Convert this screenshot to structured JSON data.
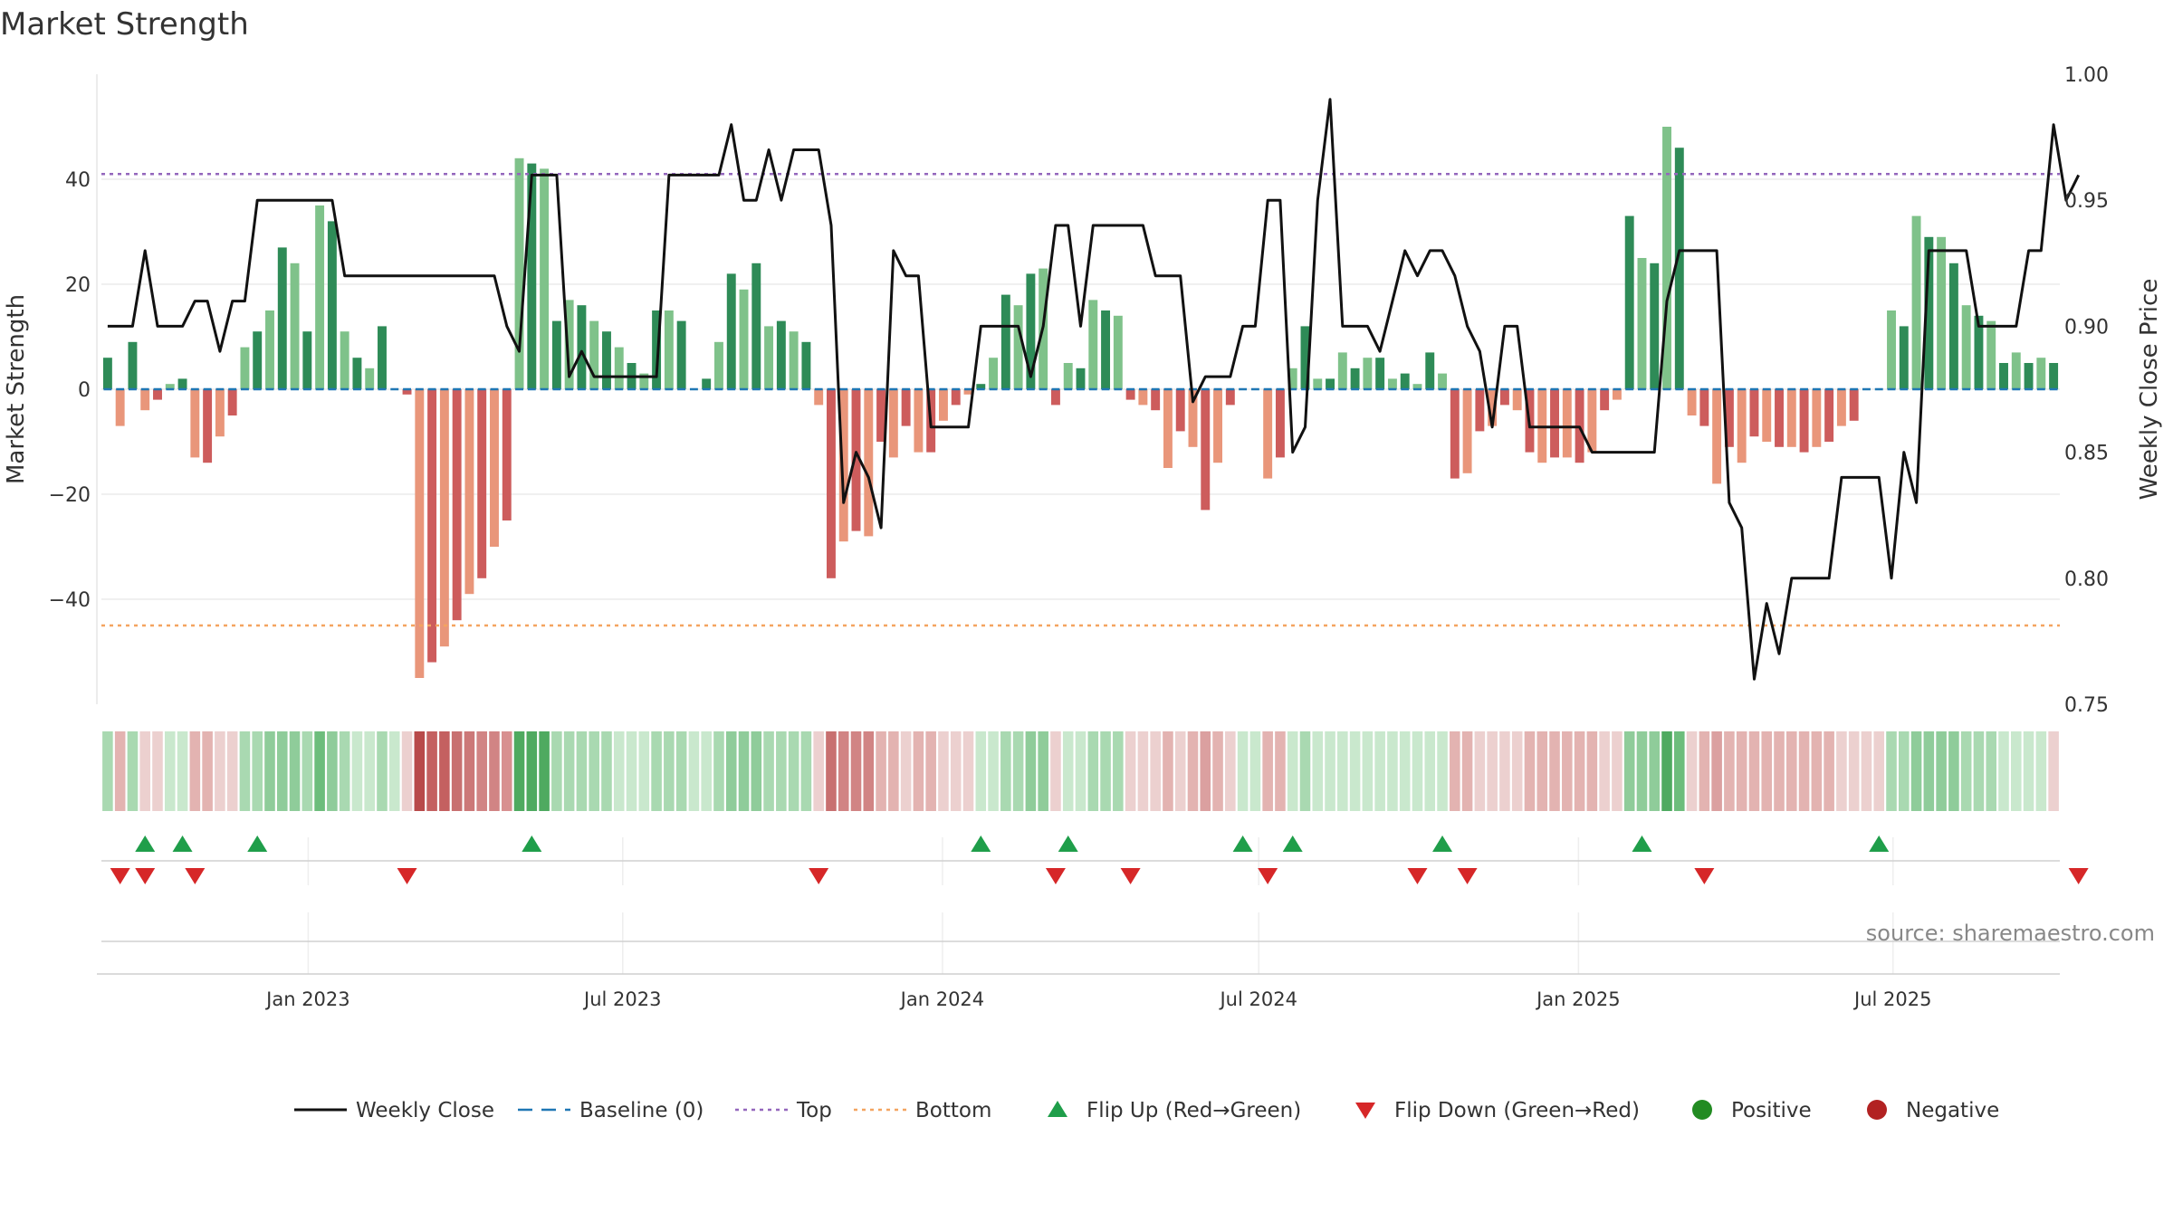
{
  "chart_data": {
    "type": "bar",
    "title": "Market Strength",
    "ylabel": "Market Strength",
    "y2label": "Weekly Close Price",
    "ylim": [
      -60,
      60
    ],
    "y2lim": [
      0.75,
      1.0
    ],
    "yticks": [
      40,
      20,
      0,
      -20,
      -40
    ],
    "ytick_labels": [
      "40",
      "20",
      "0",
      "−20",
      "−40"
    ],
    "y2ticks": [
      1.0,
      0.95,
      0.9,
      0.85,
      0.8,
      0.75
    ],
    "y2tick_labels": [
      "1.00",
      "0.95",
      "0.90",
      "0.85",
      "0.80",
      "0.75"
    ],
    "x_start": "2022-09-04",
    "x_end": "2025-10-05",
    "date_ticks": [
      {
        "label": "Jan 2023",
        "date": "2023-01-01"
      },
      {
        "label": "Jul 2023",
        "date": "2023-07-01"
      },
      {
        "label": "Jan 2024",
        "date": "2024-01-01"
      },
      {
        "label": "Jul 2024",
        "date": "2024-07-01"
      },
      {
        "label": "Jan 2025",
        "date": "2025-01-01"
      },
      {
        "label": "Jul 2025",
        "date": "2025-07-01"
      }
    ],
    "top_line": 41,
    "bottom_line": -45,
    "strength": [
      6,
      -7,
      9,
      -4,
      -2,
      1,
      2,
      -13,
      -14,
      -9,
      -5,
      8,
      11,
      15,
      27,
      24,
      11,
      35,
      32,
      11,
      6,
      4,
      12,
      0,
      -1,
      -55,
      -52,
      -49,
      -44,
      -39,
      -36,
      -30,
      -25,
      44,
      43,
      42,
      13,
      17,
      16,
      13,
      11,
      8,
      5,
      3,
      15,
      15,
      13,
      0,
      2,
      9,
      22,
      19,
      24,
      12,
      13,
      11,
      9,
      -3,
      -36,
      -29,
      -27,
      -28,
      -10,
      -13,
      -7,
      -12,
      -12,
      -6,
      -3,
      -1,
      1,
      6,
      18,
      16,
      22,
      23,
      -3,
      5,
      4,
      17,
      15,
      14,
      -2,
      -3,
      -4,
      -15,
      -8,
      -11,
      -23,
      -14,
      -3,
      0,
      0,
      -17,
      -13,
      4,
      12,
      2,
      2,
      7,
      4,
      6,
      6,
      2,
      3,
      1,
      7,
      3,
      -17,
      -16,
      -8,
      -7,
      -3,
      -4,
      -12,
      -14,
      -13,
      -13,
      -14,
      -12,
      -4,
      -2,
      33,
      25,
      24,
      50,
      46,
      -5,
      -7,
      -18,
      -11,
      -14,
      -9,
      -10,
      -11,
      -11,
      -12,
      -11,
      -10,
      -7,
      -6,
      0,
      0,
      15,
      12,
      33,
      29,
      29,
      24,
      16,
      14,
      13,
      5,
      7,
      5,
      6,
      5
    ],
    "close": [
      0.9,
      0.9,
      0.9,
      0.93,
      0.9,
      0.9,
      0.9,
      0.91,
      0.91,
      0.89,
      0.91,
      0.91,
      0.95,
      0.95,
      0.95,
      0.95,
      0.95,
      0.95,
      0.95,
      0.92,
      0.92,
      0.92,
      0.92,
      0.92,
      0.92,
      0.92,
      0.92,
      0.92,
      0.92,
      0.92,
      0.92,
      0.92,
      0.9,
      0.89,
      0.96,
      0.96,
      0.96,
      0.88,
      0.89,
      0.88,
      0.88,
      0.88,
      0.88,
      0.88,
      0.88,
      0.96,
      0.96,
      0.96,
      0.96,
      0.96,
      0.98,
      0.95,
      0.95,
      0.97,
      0.95,
      0.97,
      0.97,
      0.97,
      0.94,
      0.83,
      0.85,
      0.84,
      0.82,
      0.93,
      0.92,
      0.92,
      0.86,
      0.86,
      0.86,
      0.86,
      0.9,
      0.9,
      0.9,
      0.9,
      0.88,
      0.9,
      0.94,
      0.94,
      0.9,
      0.94,
      0.94,
      0.94,
      0.94,
      0.94,
      0.92,
      0.92,
      0.92,
      0.87,
      0.88,
      0.88,
      0.88,
      0.9,
      0.9,
      0.95,
      0.95,
      0.85,
      0.86,
      0.95,
      0.99,
      0.9,
      0.9,
      0.9,
      0.89,
      0.91,
      0.93,
      0.92,
      0.93,
      0.93,
      0.92,
      0.9,
      0.89,
      0.86,
      0.9,
      0.9,
      0.86,
      0.86,
      0.86,
      0.86,
      0.86,
      0.85,
      0.85,
      0.85,
      0.85,
      0.85,
      0.85,
      0.91,
      0.93,
      0.93,
      0.93,
      0.93,
      0.83,
      0.82,
      0.76,
      0.79,
      0.77,
      0.8,
      0.8,
      0.8,
      0.8,
      0.84,
      0.84,
      0.84,
      0.84,
      0.8,
      0.85,
      0.83,
      0.93,
      0.93,
      0.93,
      0.93,
      0.9,
      0.9,
      0.9,
      0.9,
      0.93,
      0.93,
      0.98,
      0.95,
      0.96
    ],
    "flip_up": [
      3,
      6,
      12,
      34,
      70,
      77,
      91,
      95,
      107,
      123,
      142
    ],
    "flip_down": [
      1,
      3,
      7,
      24,
      57,
      76,
      82,
      93,
      105,
      109,
      128,
      158
    ],
    "strip_colors": [
      "#a9d9b1",
      "#e3b3b1",
      "#a9d9b1",
      "#ecd0cf",
      "#ecd0cf",
      "#c9e8cd",
      "#c9e8cd",
      "#e3b3b1",
      "#e3b3b1",
      "#ecd0cf",
      "#ecd0cf",
      "#a9d9b1",
      "#a9d9b1",
      "#8fcc9a",
      "#8fcc9a",
      "#8fcc9a",
      "#a9d9b1",
      "#6dbd7c",
      "#8fcc9a",
      "#a9d9b1",
      "#c9e8cd",
      "#c9e8cd",
      "#a9d9b1",
      "#c9e8cd",
      "#ecd0cf",
      "#b84a4a",
      "#c46060",
      "#c46060",
      "#c87070",
      "#cc7878",
      "#d18484",
      "#d18484",
      "#d89090",
      "#4faa60",
      "#4faa60",
      "#4faa60",
      "#a9d9b1",
      "#a9d9b1",
      "#a9d9b1",
      "#a9d9b1",
      "#a9d9b1",
      "#c9e8cd",
      "#c9e8cd",
      "#c9e8cd",
      "#a9d9b1",
      "#a9d9b1",
      "#a9d9b1",
      "#c9e8cd",
      "#c9e8cd",
      "#a9d9b1",
      "#8fcc9a",
      "#8fcc9a",
      "#8fcc9a",
      "#a9d9b1",
      "#a9d9b1",
      "#a9d9b1",
      "#a9d9b1",
      "#ecd0cf",
      "#c87070",
      "#d18484",
      "#d18484",
      "#d18484",
      "#e3b3b1",
      "#e3b3b1",
      "#ecd0cf",
      "#e3b3b1",
      "#e3b3b1",
      "#ecd0cf",
      "#ecd0cf",
      "#ecd0cf",
      "#c9e8cd",
      "#c9e8cd",
      "#a9d9b1",
      "#a9d9b1",
      "#8fcc9a",
      "#8fcc9a",
      "#ecd0cf",
      "#c9e8cd",
      "#c9e8cd",
      "#a9d9b1",
      "#a9d9b1",
      "#a9d9b1",
      "#ecd0cf",
      "#ecd0cf",
      "#ecd0cf",
      "#e3b3b1",
      "#ecd0cf",
      "#e3b3b1",
      "#dba0a0",
      "#e3b3b1",
      "#ecd0cf",
      "#c9e8cd",
      "#c9e8cd",
      "#e3b3b1",
      "#e3b3b1",
      "#c9e8cd",
      "#a9d9b1",
      "#c9e8cd",
      "#c9e8cd",
      "#c9e8cd",
      "#c9e8cd",
      "#c9e8cd",
      "#c9e8cd",
      "#c9e8cd",
      "#c9e8cd",
      "#c9e8cd",
      "#c9e8cd",
      "#c9e8cd",
      "#e3b3b1",
      "#e3b3b1",
      "#ecd0cf",
      "#ecd0cf",
      "#ecd0cf",
      "#ecd0cf",
      "#e3b3b1",
      "#e3b3b1",
      "#e3b3b1",
      "#e3b3b1",
      "#e3b3b1",
      "#e3b3b1",
      "#ecd0cf",
      "#ecd0cf",
      "#8fcc9a",
      "#8fcc9a",
      "#8fcc9a",
      "#4faa60",
      "#6dbd7c",
      "#ecd0cf",
      "#e3b3b1",
      "#dba0a0",
      "#e3b3b1",
      "#e3b3b1",
      "#e3b3b1",
      "#e3b3b1",
      "#e3b3b1",
      "#e3b3b1",
      "#e3b3b1",
      "#e3b3b1",
      "#e3b3b1",
      "#ecd0cf",
      "#ecd0cf",
      "#ecd0cf",
      "#ecd0cf",
      "#a9d9b1",
      "#a9d9b1",
      "#8fcc9a",
      "#8fcc9a",
      "#8fcc9a",
      "#8fcc9a",
      "#a9d9b1",
      "#a9d9b1",
      "#a9d9b1",
      "#c9e8cd",
      "#c9e8cd",
      "#c9e8cd",
      "#c9e8cd",
      "#ecd0cf"
    ],
    "colors": {
      "pos_dark": "#2e8b57",
      "pos_light": "#7fc28a",
      "neg_dark": "#cd5c5c",
      "neg_light": "#e9967a",
      "close_line": "#111111",
      "baseline": "#1f77b4",
      "top": "#9467bd",
      "bottom": "#f4a460",
      "flip_up": "#1f9e4a",
      "flip_down": "#d62728",
      "positive": "#228b22",
      "negative": "#b22222"
    },
    "legend": [
      {
        "label": "Weekly Close",
        "kind": "line"
      },
      {
        "label": "Baseline (0)",
        "kind": "dash"
      },
      {
        "label": "Top",
        "kind": "dot-purple"
      },
      {
        "label": "Bottom",
        "kind": "dot-orange"
      },
      {
        "label": "Flip Up (Red→Green)",
        "kind": "tri-up"
      },
      {
        "label": "Flip Down (Green→Red)",
        "kind": "tri-down"
      },
      {
        "label": "Positive",
        "kind": "circle-green"
      },
      {
        "label": "Negative",
        "kind": "circle-red"
      }
    ],
    "source": "source: sharemaestro.com"
  }
}
